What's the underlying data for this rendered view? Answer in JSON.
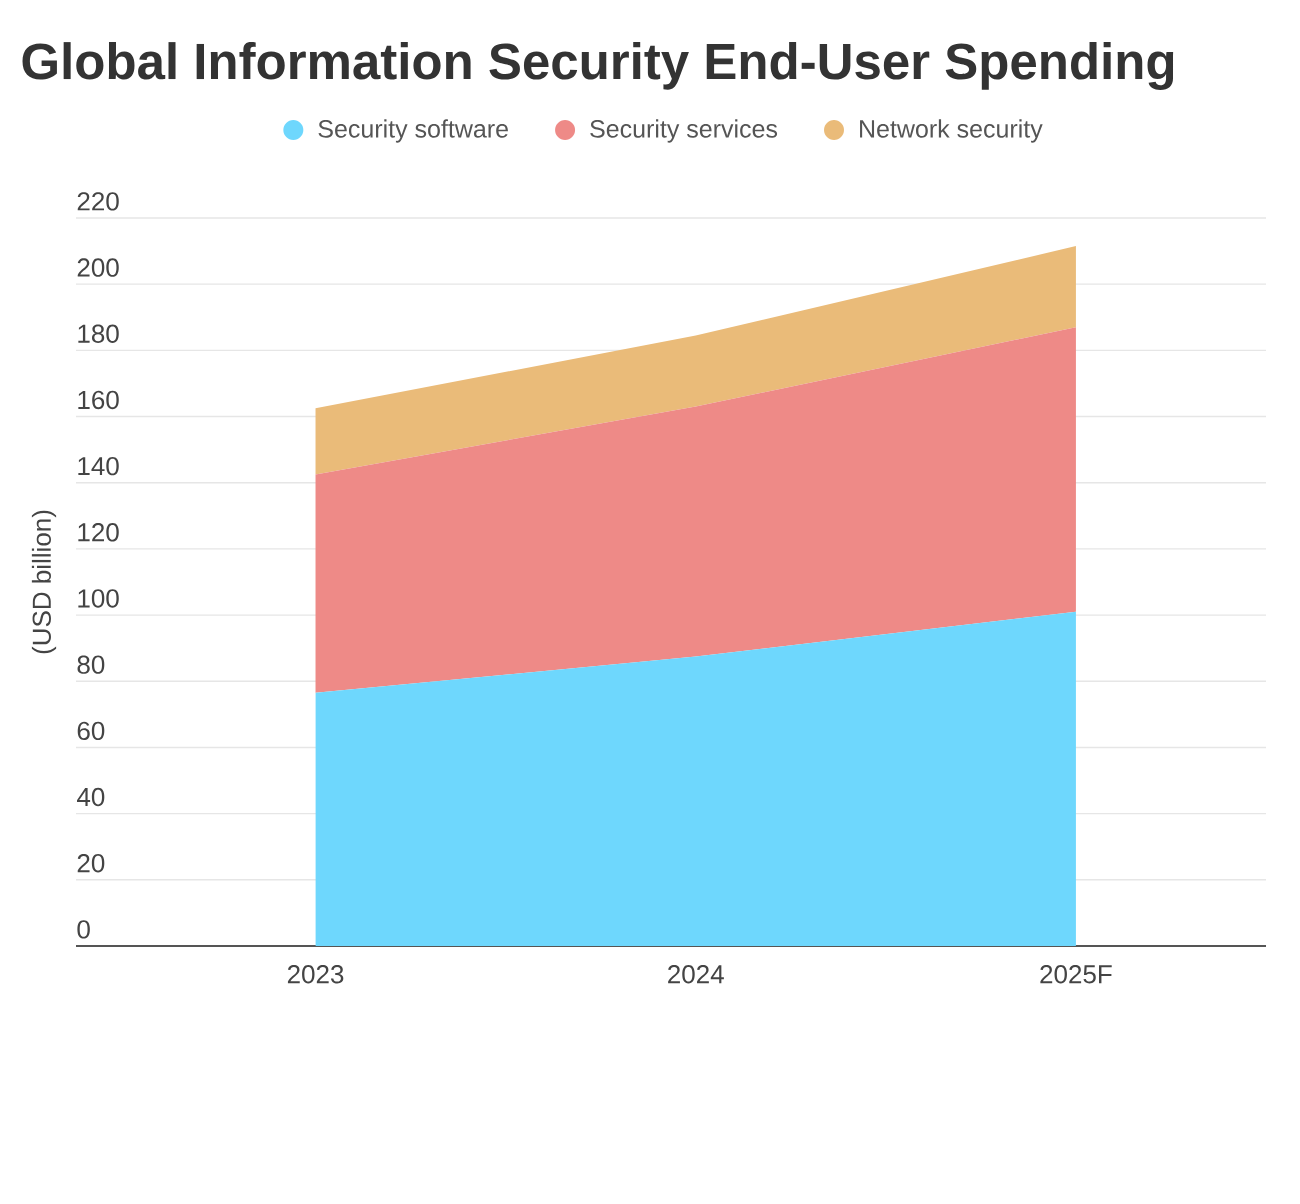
{
  "chart_data": {
    "type": "area",
    "title": "Global Information Security End-User Spending",
    "ylabel": "(USD billion)",
    "categories": [
      "2023",
      "2024",
      "2025F"
    ],
    "stacked": true,
    "series": [
      {
        "name": "Security software",
        "color": "#6ed7fd",
        "values": [
          76.5,
          87.5,
          101
        ]
      },
      {
        "name": "Security services",
        "color": "#ee8a87",
        "values": [
          66,
          75.5,
          86
        ]
      },
      {
        "name": "Network security",
        "color": "#eabb79",
        "values": [
          20,
          21.5,
          24.5
        ]
      }
    ],
    "ylim": [
      0,
      220
    ],
    "yticks": [
      0,
      20,
      40,
      60,
      80,
      100,
      120,
      140,
      160,
      180,
      200,
      220
    ],
    "grid": "y",
    "legend": "top"
  }
}
